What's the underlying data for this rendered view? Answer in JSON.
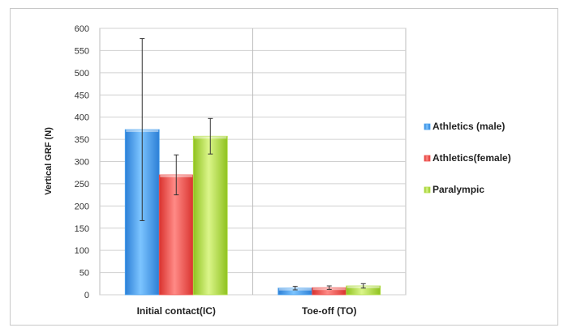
{
  "chart_data": {
    "type": "bar",
    "title": "",
    "xlabel": "",
    "ylabel": "Vertical GRF (N)",
    "ylim": [
      0,
      600
    ],
    "ytick_step": 50,
    "categories": [
      "Initial contact(IC)",
      "Toe-off (TO)"
    ],
    "series": [
      {
        "name": "Athletics (male)",
        "color": "#4aa3f0",
        "values": [
          372,
          15
        ],
        "errors": [
          205,
          4
        ]
      },
      {
        "name": "Athletics(female)",
        "color": "#ef5350",
        "values": [
          270,
          16
        ],
        "errors": [
          45,
          4
        ]
      },
      {
        "name": "Paralympic",
        "color": "#b5e04a",
        "values": [
          357,
          20
        ],
        "errors": [
          40,
          5
        ]
      }
    ],
    "grid": true,
    "legend": "right"
  }
}
